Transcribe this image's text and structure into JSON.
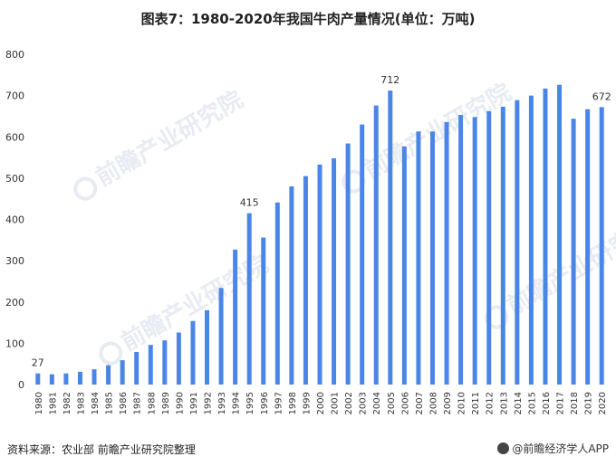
{
  "title": "图表7：1980-2020年我国牛肉产量情况(单位：万吨)",
  "footer": {
    "source": "资料来源：农业部 前瞻产业研究院整理",
    "brand": "@前瞻经济学人APP"
  },
  "watermark": {
    "text": "前瞻产业研究院"
  },
  "colors": {
    "bar": "#4a86e8",
    "grid": "#e8e8e8",
    "text": "#333333"
  },
  "chart_data": {
    "type": "bar",
    "title": "图表7：1980-2020年我国牛肉产量情况(单位：万吨)",
    "xlabel": "",
    "ylabel": "",
    "ylim": [
      0,
      800
    ],
    "yticks": [
      0,
      100,
      200,
      300,
      400,
      500,
      600,
      700,
      800
    ],
    "grid": false,
    "categories": [
      "1980",
      "1981",
      "1982",
      "1983",
      "1984",
      "1985",
      "1986",
      "1987",
      "1988",
      "1989",
      "1990",
      "1991",
      "1992",
      "1993",
      "1994",
      "1995",
      "1996",
      "1997",
      "1998",
      "1999",
      "2000",
      "2001",
      "2002",
      "2003",
      "2004",
      "2005",
      "2006",
      "2007",
      "2008",
      "2009",
      "2010",
      "2011",
      "2012",
      "2013",
      "2014",
      "2015",
      "2016",
      "2017",
      "2018",
      "2019",
      "2020"
    ],
    "values": [
      27,
      25,
      27,
      31,
      37,
      47,
      59,
      79,
      96,
      107,
      126,
      154,
      180,
      234,
      327,
      415,
      356,
      441,
      480,
      505,
      533,
      548,
      584,
      630,
      676,
      712,
      577,
      613,
      613,
      636,
      653,
      648,
      662,
      673,
      689,
      700,
      717,
      726,
      644,
      667,
      672
    ],
    "data_labels": [
      {
        "category": "1980",
        "text": "27"
      },
      {
        "category": "1995",
        "text": "415"
      },
      {
        "category": "2005",
        "text": "712"
      },
      {
        "category": "2020",
        "text": "672"
      }
    ]
  }
}
